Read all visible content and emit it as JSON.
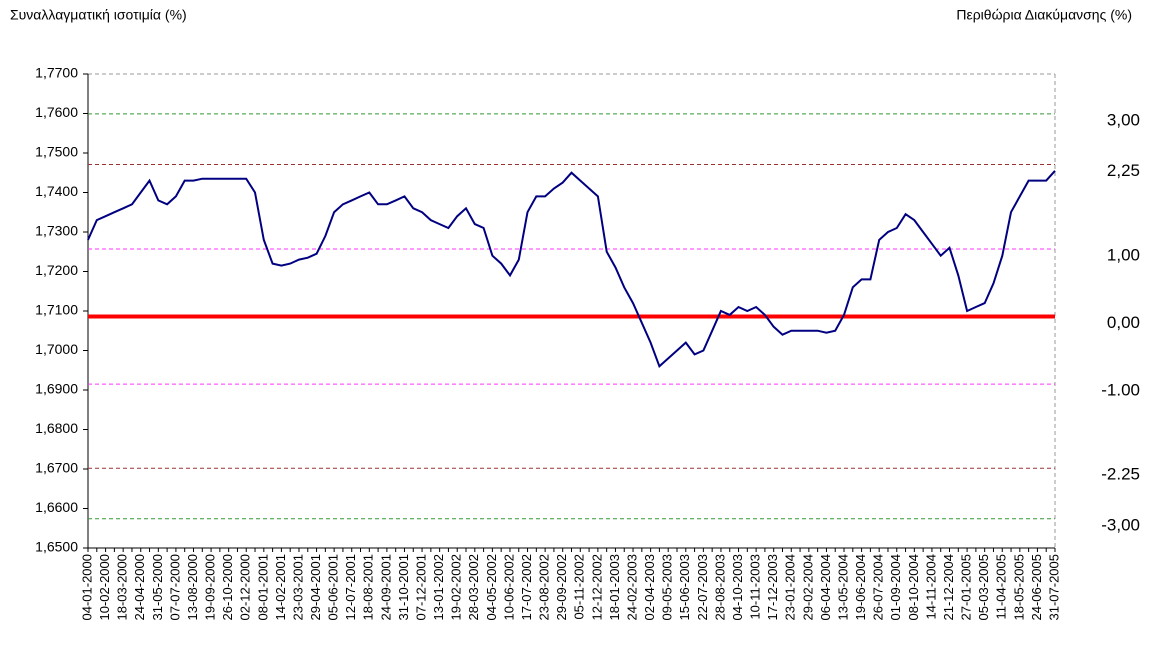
{
  "chart_data": {
    "type": "line",
    "y_label": "Συναλλαγματική ισοτιμία (%)",
    "y2_label": "Περιθώρια Διακύμανσης (%)",
    "categories": [
      "04-01-2000",
      null,
      "10-02-2000",
      null,
      "18-03-2000",
      null,
      "24-04-2000",
      null,
      "31-05-2000",
      null,
      "07-07-2000",
      null,
      "13-08-2000",
      null,
      "19-09-2000",
      null,
      "26-10-2000",
      null,
      "02-12-2000",
      null,
      "08-01-2001",
      null,
      "14-02-2001",
      null,
      "23-03-2001",
      null,
      "29-04-2001",
      null,
      "05-06-2001",
      null,
      "12-07-2001",
      null,
      "18-08-2001",
      null,
      "24-09-2001",
      null,
      "31-10-2001",
      null,
      "07-12-2001",
      null,
      "13-01-2002",
      null,
      "19-02-2002",
      null,
      "28-03-2002",
      null,
      "04-05-2002",
      null,
      "10-06-2002",
      null,
      "17-07-2002",
      null,
      "23-08-2002",
      null,
      "29-09-2002",
      null,
      "05-11-2002",
      null,
      "12-12-2002",
      null,
      "18-01-2003",
      null,
      "24-02-2003",
      null,
      "02-04-2003",
      null,
      "09-05-2003",
      null,
      "15-06-2003",
      null,
      "22-07-2003",
      null,
      "28-08-2003",
      null,
      "04-10-2003",
      null,
      "10-11-2003",
      null,
      "17-12-2003",
      null,
      "23-01-2004",
      null,
      "29-02-2004",
      null,
      "06-04-2004",
      null,
      "13-05-2004",
      null,
      "19-06-2004",
      null,
      "26-07-2004",
      null,
      "01-09-2004",
      null,
      "08-10-2004",
      null,
      "14-11-2004",
      null,
      "21-12-2004",
      null,
      "27-01-2005",
      null,
      "05-03-2005",
      null,
      "11-04-2005",
      null,
      "18-05-2005",
      null,
      "24-06-2005",
      null,
      "31-07-2005"
    ],
    "series": [
      {
        "color": "#000080",
        "values": [
          1.728,
          1.733,
          1.734,
          1.735,
          1.736,
          1.737,
          1.74,
          1.743,
          1.738,
          1.737,
          1.739,
          1.743,
          1.743,
          1.7435,
          1.7435,
          1.7435,
          1.7435,
          1.7435,
          1.7435,
          1.74,
          1.728,
          1.722,
          1.7215,
          1.722,
          1.723,
          1.7235,
          1.7245,
          1.729,
          1.735,
          1.737,
          1.738,
          1.739,
          1.74,
          1.737,
          1.737,
          1.738,
          1.739,
          1.736,
          1.735,
          1.733,
          1.732,
          1.731,
          1.734,
          1.736,
          1.732,
          1.731,
          1.724,
          1.722,
          1.719,
          1.723,
          1.735,
          1.739,
          1.739,
          1.741,
          1.7425,
          1.745,
          1.743,
          1.741,
          1.739,
          1.725,
          1.721,
          1.716,
          1.712,
          1.707,
          1.702,
          1.696,
          1.698,
          1.7,
          1.702,
          1.699,
          1.7,
          1.705,
          1.71,
          1.709,
          1.711,
          1.71,
          1.711,
          1.709,
          1.706,
          1.704,
          1.705,
          1.705,
          1.705,
          1.705,
          1.7045,
          1.705,
          1.709,
          1.716,
          1.718,
          1.718,
          1.728,
          1.73,
          1.731,
          1.7345,
          1.733,
          1.73,
          1.727,
          1.724,
          1.726,
          1.719,
          1.71,
          1.711,
          1.712,
          1.717,
          1.724,
          1.735,
          1.739,
          1.743,
          1.743,
          1.743,
          1.7455
        ]
      }
    ],
    "ylim": [
      1.65,
      1.77
    ],
    "yticks": [
      {
        "value": 1.65,
        "label": "1,6500"
      },
      {
        "value": 1.66,
        "label": "1,6600"
      },
      {
        "value": 1.67,
        "label": "1,6700"
      },
      {
        "value": 1.68,
        "label": "1,6800"
      },
      {
        "value": 1.69,
        "label": "1,6900"
      },
      {
        "value": 1.7,
        "label": "1,7000"
      },
      {
        "value": 1.71,
        "label": "1,7100"
      },
      {
        "value": 1.72,
        "label": "1,7200"
      },
      {
        "value": 1.73,
        "label": "1,7300"
      },
      {
        "value": 1.74,
        "label": "1,7400"
      },
      {
        "value": 1.75,
        "label": "1,7500"
      },
      {
        "value": 1.76,
        "label": "1,7600"
      },
      {
        "value": 1.77,
        "label": "1,7700"
      }
    ],
    "reference_lines": [
      {
        "value": 1.7599,
        "label": "3,00",
        "color": "#339933"
      },
      {
        "value": 1.7471,
        "label": "2,25",
        "color": "#993333"
      },
      {
        "value": 1.7257,
        "label": "1,00",
        "color": "#ff33ff"
      },
      {
        "value": 1.7086,
        "label": "0,00",
        "color": "#ff0000"
      },
      {
        "value": 1.6915,
        "label": "-1.00",
        "color": "#ff33ff"
      },
      {
        "value": 1.6702,
        "label": "-2.25",
        "color": "#993333"
      },
      {
        "value": 1.6574,
        "label": "-3,00",
        "color": "#339933"
      }
    ]
  }
}
